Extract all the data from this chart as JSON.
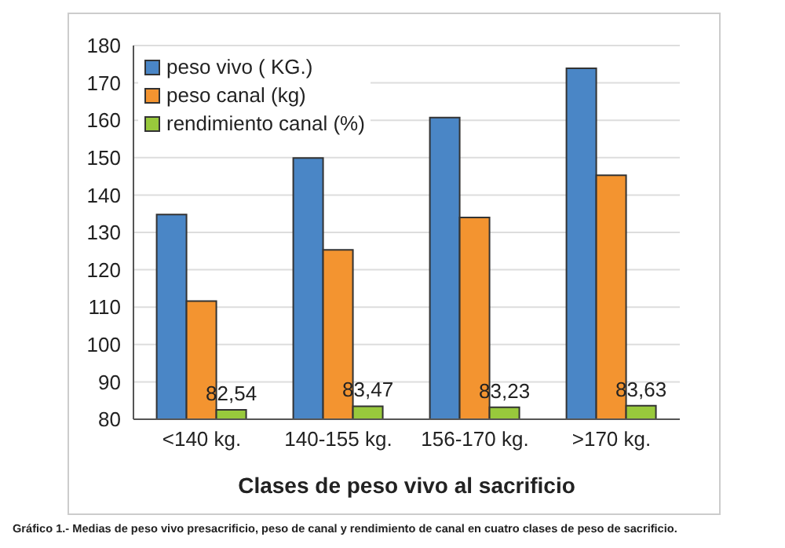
{
  "chart_data": {
    "type": "bar",
    "xlabel": "Clases de peso vivo al sacrificio",
    "categories": [
      "<140 kg.",
      "140-155 kg.",
      "156-170 kg.",
      ">170 kg."
    ],
    "series": [
      {
        "name": "peso vivo ( KG.)",
        "color": "#4a86c6",
        "values": [
          134.8,
          149.9,
          160.7,
          173.9
        ]
      },
      {
        "name": "peso canal (kg)",
        "color": "#f39430",
        "values": [
          111.6,
          125.3,
          134.0,
          145.3
        ]
      },
      {
        "name": "rendimiento canal (%)",
        "color": "#98c93c",
        "values": [
          82.54,
          83.47,
          83.23,
          83.63
        ],
        "value_labels": [
          "82,54",
          "83,47",
          "83,23",
          "83,63"
        ]
      }
    ],
    "ylim": [
      80,
      180
    ],
    "yticks": [
      80,
      90,
      100,
      110,
      120,
      130,
      140,
      150,
      160,
      170,
      180
    ],
    "grid": "y",
    "legend": "top left",
    "annotations": [
      "Gráfico 1.- Medias de peso vivo presacrificio, peso de canal y rendimiento de canal en cuatro clases de peso de sacrificio."
    ]
  }
}
